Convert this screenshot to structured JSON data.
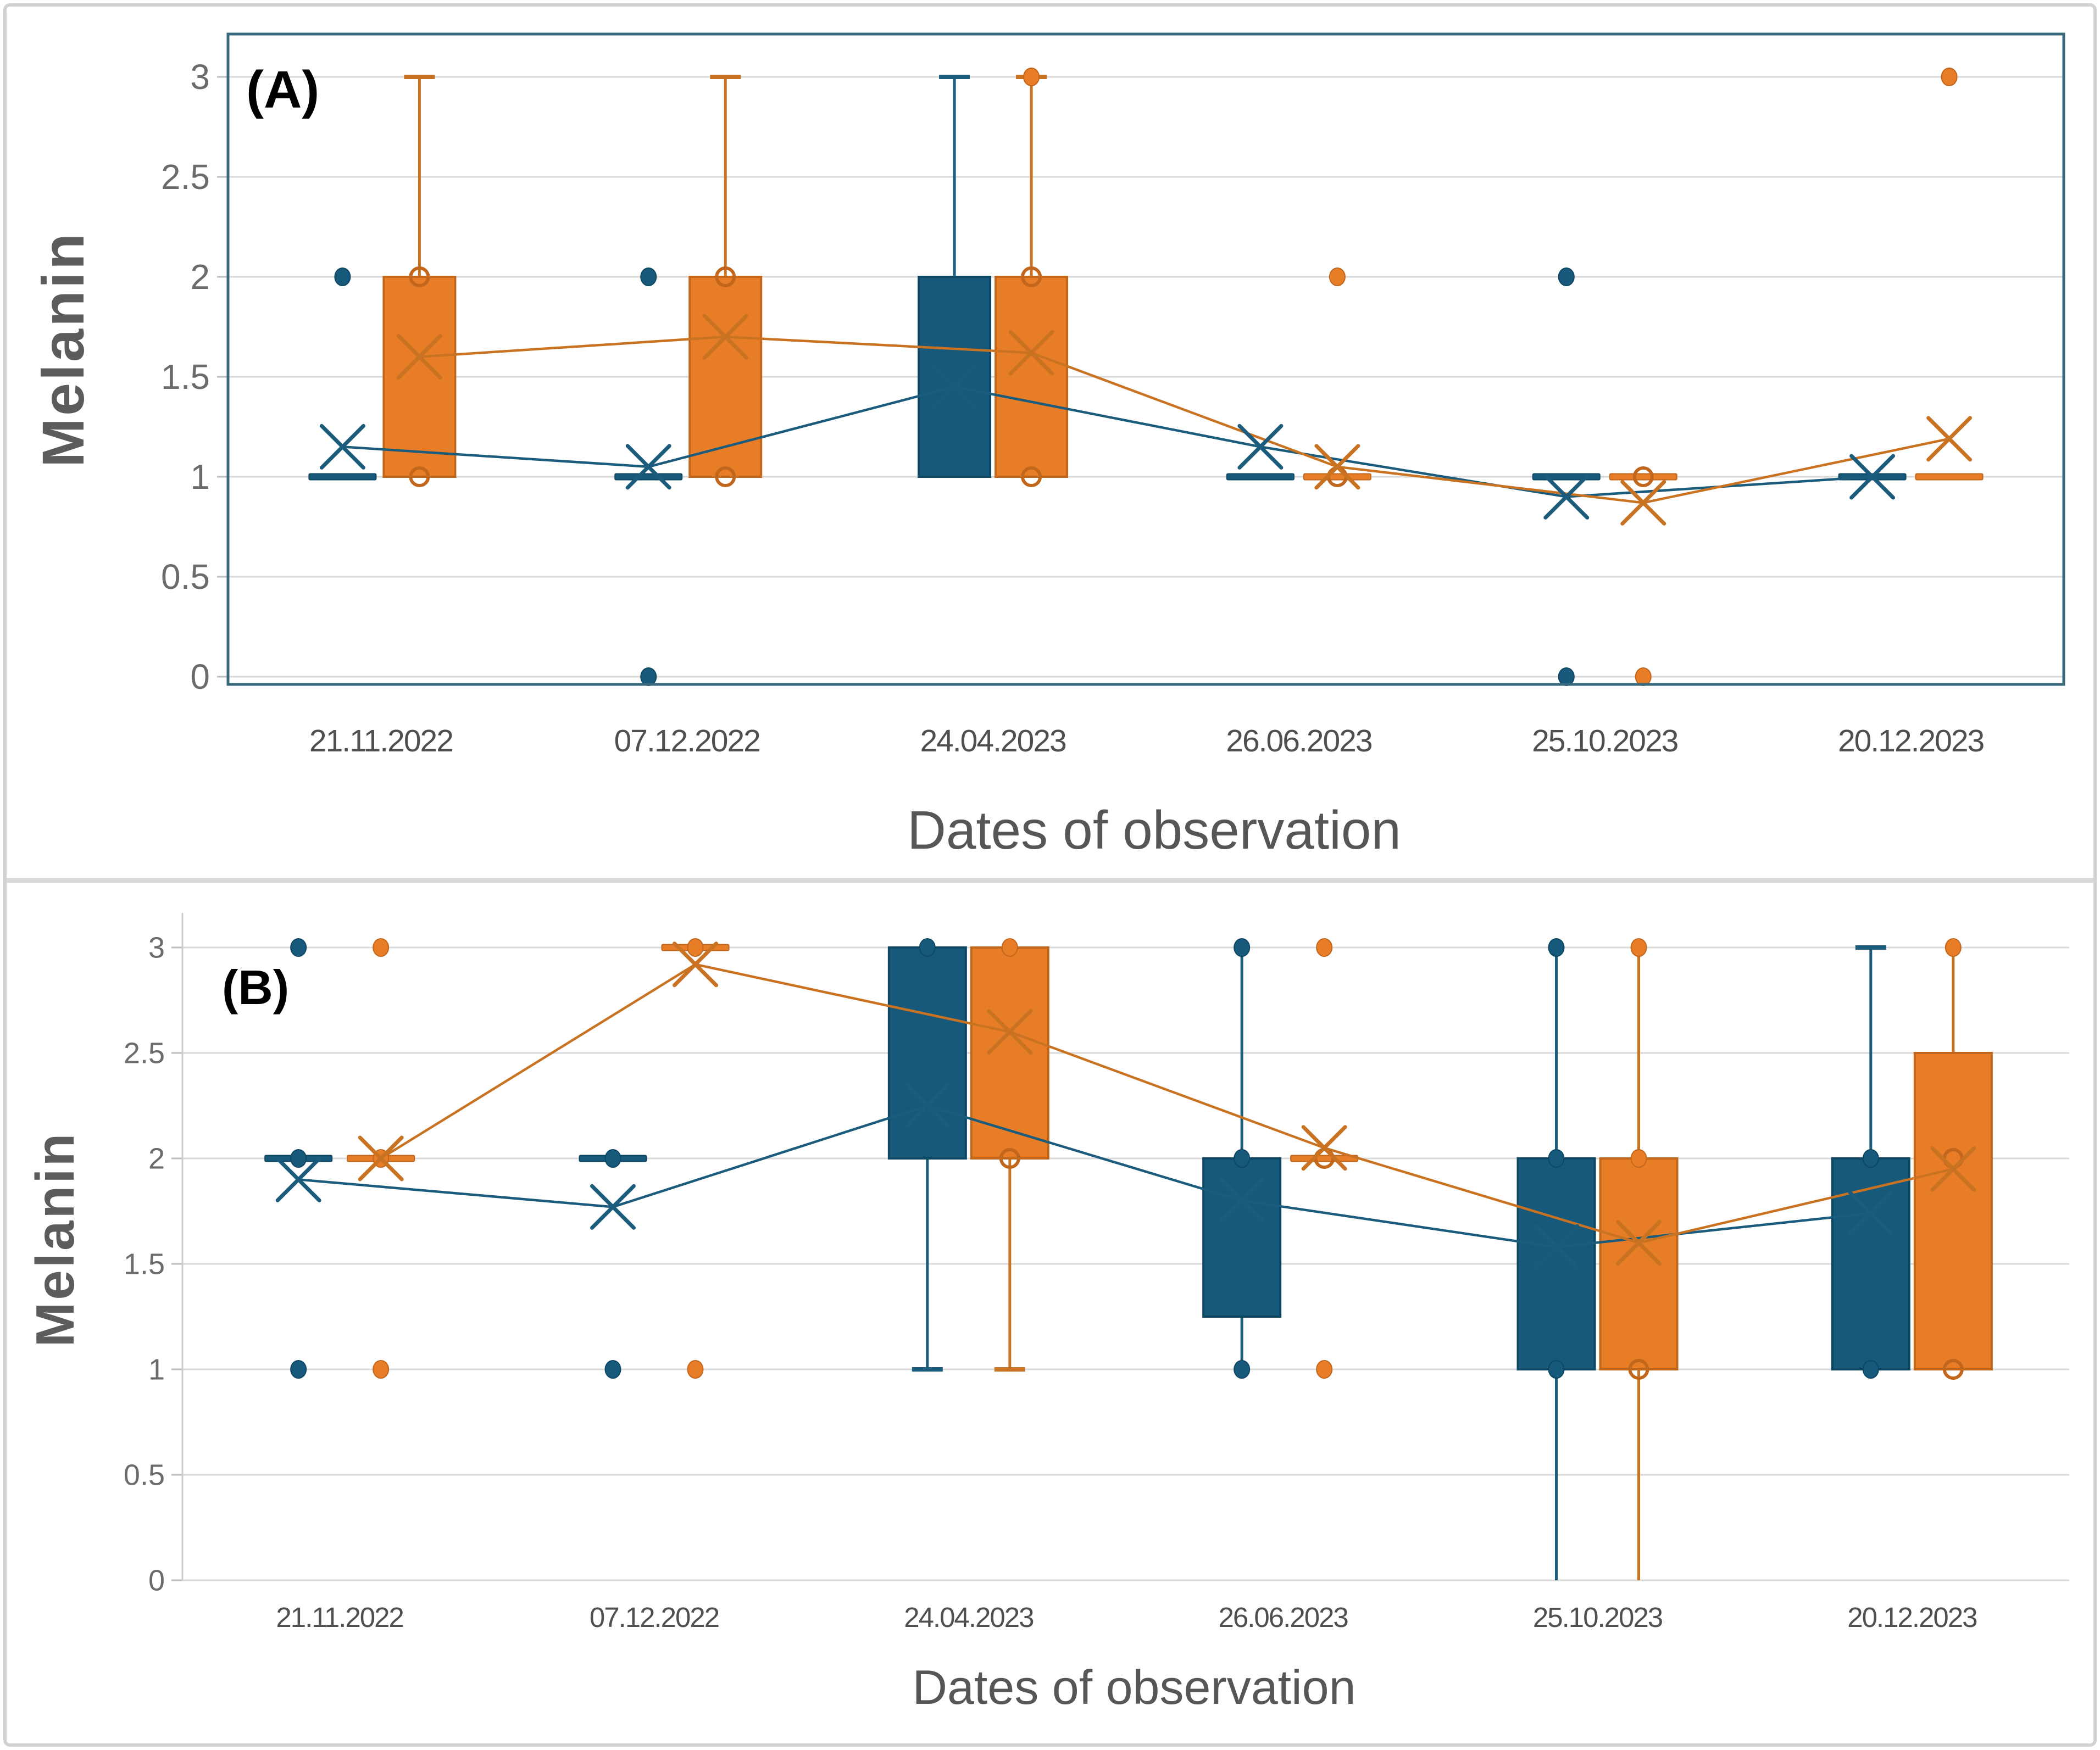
{
  "figure": {
    "description_labels": {
      "panel_a": "(A)",
      "panel_b": "(B)"
    }
  },
  "colors": {
    "blue": {
      "fill": "#16597B",
      "stroke": "#0E4763",
      "line": "#1B5C7D"
    },
    "orange": {
      "fill": "#E87D28",
      "stroke": "#C2661B",
      "line": "#C97322"
    },
    "grid": "#DADADA",
    "tick": "#BFBFBF",
    "frame_a": "#38687E",
    "axis_line_b": "#C9CDD0",
    "divider": "#D8D8D8",
    "axis_text": "#6B6B6B",
    "date_text": "#4F4F4F",
    "title_text": "#565656",
    "ylabel_text": "#5C5C5C",
    "panel_text": "#000000"
  },
  "chart_data": [
    {
      "id": "A",
      "type": "boxplot",
      "panel_label": "(A)",
      "ylabel": "Melanin",
      "xlabel": "Dates of observation",
      "ylim": [
        0,
        3
      ],
      "grid": true,
      "legend": "none",
      "yticks": [
        {
          "v": 3,
          "label": "3"
        },
        {
          "v": 2.5,
          "label": "2.5"
        },
        {
          "v": 2,
          "label": "2"
        },
        {
          "v": 1.5,
          "label": "1.5"
        },
        {
          "v": 1,
          "label": "1"
        },
        {
          "v": 0.5,
          "label": "0.5"
        },
        {
          "v": 0,
          "label": "0"
        }
      ],
      "categories": [
        "21.11.2022",
        "07.12.2022",
        "24.04.2023",
        "26.06.2023",
        "25.10.2023",
        "20.12.2023"
      ],
      "series": [
        {
          "name": "series-blue",
          "color_role": "blue",
          "means": [
            1.15,
            1.05,
            1.45,
            1.15,
            0.9,
            1.0
          ],
          "items": [
            {
              "dash": 1,
              "mean": 1.15,
              "dots": [
                2
              ]
            },
            {
              "dash": 1,
              "mean": 1.05,
              "dots": [
                2,
                0
              ]
            },
            {
              "box": [
                1,
                2
              ],
              "wu": [
                2,
                3,
                "cap"
              ],
              "mean": 1.45
            },
            {
              "dash": 1,
              "mean": 1.15
            },
            {
              "dash": 1,
              "mean": 0.9,
              "dots": [
                2,
                0
              ]
            },
            {
              "dash": 1,
              "mean": 1.0
            }
          ]
        },
        {
          "name": "series-orange",
          "color_role": "orange",
          "means": [
            1.6,
            1.7,
            1.62,
            1.05,
            0.87,
            1.19
          ],
          "items": [
            {
              "box": [
                1,
                2
              ],
              "wu": [
                2,
                3,
                "cap"
              ],
              "rings": [
                2,
                1
              ],
              "mean": 1.6
            },
            {
              "box": [
                1,
                2
              ],
              "wu": [
                2,
                3,
                "cap"
              ],
              "rings": [
                2,
                1
              ],
              "mean": 1.7
            },
            {
              "box": [
                1,
                2
              ],
              "wu": [
                2,
                3,
                "cap"
              ],
              "rings": [
                2,
                1
              ],
              "dots": [
                3
              ],
              "mean": 1.62
            },
            {
              "dash": 1,
              "rings": [
                1
              ],
              "dots": [
                2
              ],
              "mean": 1.05
            },
            {
              "dash": 1,
              "rings": [
                1
              ],
              "dots": [
                0
              ],
              "mean": 0.87
            },
            {
              "dash": 1,
              "dots": [
                3
              ],
              "mean": 1.19
            }
          ]
        }
      ]
    },
    {
      "id": "B",
      "type": "boxplot",
      "panel_label": "(B)",
      "ylabel": "Melanin",
      "xlabel": "Dates of observation",
      "ylim": [
        0,
        3
      ],
      "grid": true,
      "legend": "none",
      "yticks": [
        {
          "v": 3,
          "label": "3"
        },
        {
          "v": 2.5,
          "label": "2.5"
        },
        {
          "v": 2,
          "label": "2"
        },
        {
          "v": 1.5,
          "label": "1.5"
        },
        {
          "v": 1,
          "label": "1"
        },
        {
          "v": 0.5,
          "label": "0.5"
        },
        {
          "v": 0,
          "label": "0"
        }
      ],
      "categories": [
        "21.11.2022",
        "07.12.2022",
        "24.04.2023",
        "26.06.2023",
        "25.10.2023",
        "20.12.2023"
      ],
      "series": [
        {
          "name": "series-blue",
          "color_role": "blue",
          "means": [
            1.9,
            1.77,
            2.25,
            1.8,
            1.58,
            1.74
          ],
          "items": [
            {
              "dash": 2,
              "dots": [
                3,
                2,
                1
              ],
              "mean": 1.9
            },
            {
              "dash": 2,
              "dots": [
                2,
                1
              ],
              "mean": 1.77
            },
            {
              "box": [
                2,
                3
              ],
              "wd": [
                2,
                1,
                "cap"
              ],
              "dots": [
                3
              ],
              "mean": 2.25
            },
            {
              "box": [
                1.25,
                2
              ],
              "wu": [
                2,
                3,
                "none"
              ],
              "wd": [
                1.25,
                1,
                "none"
              ],
              "dots": [
                3,
                2,
                1
              ],
              "mean": 1.8
            },
            {
              "box": [
                1,
                2
              ],
              "wu": [
                2,
                3,
                "none"
              ],
              "wd": [
                1,
                0,
                "none"
              ],
              "dots": [
                3,
                2,
                1
              ],
              "mean": 1.58
            },
            {
              "box": [
                1,
                2
              ],
              "wu": [
                2,
                3,
                "cap"
              ],
              "dots": [
                2,
                1
              ],
              "mean": 1.74
            }
          ]
        },
        {
          "name": "series-orange",
          "color_role": "orange",
          "means": [
            2.0,
            2.92,
            2.6,
            2.05,
            1.6,
            1.95
          ],
          "items": [
            {
              "dash": 2,
              "dots": [
                3,
                2,
                1
              ],
              "mean": 2.0
            },
            {
              "dash": 3,
              "dots": [
                3,
                1
              ],
              "mean": 2.92
            },
            {
              "box": [
                2,
                3
              ],
              "wd": [
                2,
                1,
                "cap"
              ],
              "dots": [
                3
              ],
              "rings": [
                2
              ],
              "mean": 2.6
            },
            {
              "dash": 2,
              "rings": [
                2
              ],
              "dots": [
                3,
                1
              ],
              "mean": 2.05
            },
            {
              "box": [
                1,
                2
              ],
              "wu": [
                2,
                3,
                "none"
              ],
              "wd": [
                1,
                0,
                "none"
              ],
              "dots": [
                3,
                2
              ],
              "rings": [
                1
              ],
              "mean": 1.6
            },
            {
              "box": [
                1,
                2.5
              ],
              "wu": [
                2.5,
                3,
                "none"
              ],
              "dots": [
                3
              ],
              "rings": [
                2,
                1
              ],
              "mean": 1.95
            }
          ]
        }
      ]
    }
  ]
}
